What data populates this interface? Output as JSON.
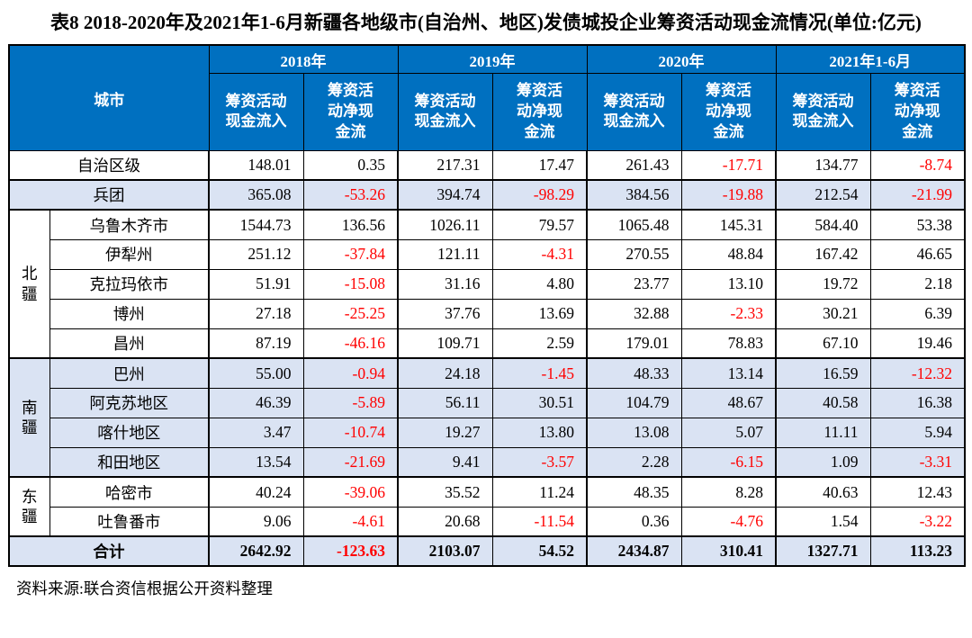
{
  "title": "表8 2018-2020年及2021年1-6月新疆各地级市(自治州、地区)发债城投企业筹资活动现金流情况(单位:亿元)",
  "source_note": "资料来源:联合资信根据公开资料整理",
  "colors": {
    "header_bg": "#0070C0",
    "header_text": "#FFFFFF",
    "shaded_row_bg": "#DAE3F3",
    "negative_value": "#FF0000",
    "border": "#000000"
  },
  "header": {
    "city_label": "城市",
    "year_groups": [
      "2018年",
      "2019年",
      "2020年",
      "2021年1-6月"
    ],
    "sub_inflow": "筹资活动现金流入",
    "sub_net": "筹资活动净现金流"
  },
  "rows": [
    {
      "city": "自治区级",
      "values": [
        "148.01",
        "0.35",
        "217.31",
        "17.47",
        "261.43",
        "-17.71",
        "134.77",
        "-8.74"
      ]
    },
    {
      "city": "兵团",
      "values": [
        "365.08",
        "-53.26",
        "394.74",
        "-98.29",
        "384.56",
        "-19.88",
        "212.54",
        "-21.99"
      ]
    },
    {
      "region": "北疆",
      "city": "乌鲁木齐市",
      "values": [
        "1544.73",
        "136.56",
        "1026.11",
        "79.57",
        "1065.48",
        "145.31",
        "584.40",
        "53.38"
      ]
    },
    {
      "city": "伊犁州",
      "values": [
        "251.12",
        "-37.84",
        "121.11",
        "-4.31",
        "270.55",
        "48.84",
        "167.42",
        "46.65"
      ]
    },
    {
      "city": "克拉玛依市",
      "values": [
        "51.91",
        "-15.08",
        "31.16",
        "4.80",
        "23.77",
        "13.10",
        "19.72",
        "2.18"
      ]
    },
    {
      "city": "博州",
      "values": [
        "27.18",
        "-25.25",
        "37.76",
        "13.69",
        "32.88",
        "-2.33",
        "30.21",
        "6.39"
      ]
    },
    {
      "city": "昌州",
      "values": [
        "87.19",
        "-46.16",
        "109.71",
        "2.59",
        "179.01",
        "78.83",
        "67.10",
        "19.46"
      ]
    },
    {
      "region": "南疆",
      "city": "巴州",
      "values": [
        "55.00",
        "-0.94",
        "24.18",
        "-1.45",
        "48.33",
        "13.14",
        "16.59",
        "-12.32"
      ]
    },
    {
      "city": "阿克苏地区",
      "values": [
        "46.39",
        "-5.89",
        "56.11",
        "30.51",
        "104.79",
        "48.67",
        "40.58",
        "16.38"
      ]
    },
    {
      "city": "喀什地区",
      "values": [
        "3.47",
        "-10.74",
        "19.27",
        "13.80",
        "13.08",
        "5.07",
        "11.11",
        "5.94"
      ]
    },
    {
      "city": "和田地区",
      "values": [
        "13.54",
        "-21.69",
        "9.41",
        "-3.57",
        "2.28",
        "-6.15",
        "1.09",
        "-3.31"
      ]
    },
    {
      "region": "东疆",
      "city": "哈密市",
      "values": [
        "40.24",
        "-39.06",
        "35.52",
        "11.24",
        "48.35",
        "8.28",
        "40.63",
        "12.43"
      ]
    },
    {
      "city": "吐鲁番市",
      "values": [
        "9.06",
        "-4.61",
        "20.68",
        "-11.54",
        "0.36",
        "-4.76",
        "1.54",
        "-3.22"
      ]
    },
    {
      "city": "合计",
      "values": [
        "2642.92",
        "-123.63",
        "2103.07",
        "54.52",
        "2434.87",
        "310.41",
        "1327.71",
        "113.23"
      ]
    }
  ]
}
